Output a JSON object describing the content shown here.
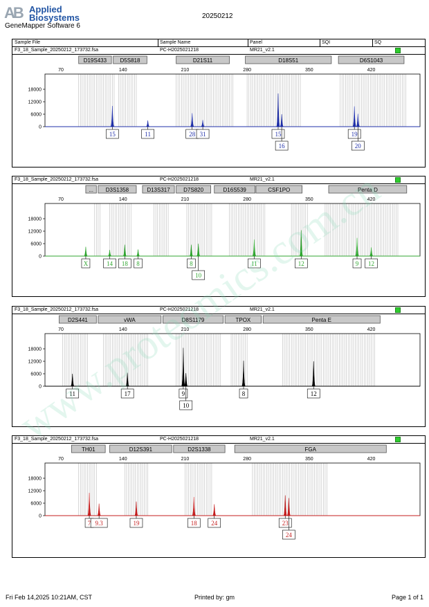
{
  "header": {
    "logo_mark": "AB",
    "company_line1": "Applied",
    "company_line2": "Biosystems",
    "software": "GeneMapper Software 6",
    "report_date": "20250212"
  },
  "columns": {
    "sample_file": "Sample File",
    "sample_name": "Sample Name",
    "panel": "Panel",
    "sqi": "SQI",
    "sq": "SQ"
  },
  "footer": {
    "printed_at": "Fri Feb 14,2025 10:21AM, CST",
    "printed_by": "Printed by: gm",
    "page": "Page 1 of 1"
  },
  "watermark": "www.proteomics.com.cn",
  "colors": {
    "blue": "#1f2fa8",
    "green": "#2fa62f",
    "black": "#000000",
    "red": "#c41e1e",
    "sq_ok": "#2ecc2e"
  },
  "chart_data": [
    {
      "type": "line",
      "sample_file": "F3_18_Sample_20250212_173732.fsa",
      "sample_name": "PC-H2025021218",
      "panel": "MR21_v2.1",
      "color": "#1f2fa8",
      "x_ticks": [
        70,
        140,
        210,
        280,
        350,
        420
      ],
      "y_ticks": [
        0,
        6000,
        12000,
        18000
      ],
      "xlim": [
        52,
        475
      ],
      "ylim": [
        0,
        22000
      ],
      "markers": [
        {
          "name": "D19S433",
          "start": 90,
          "end": 127
        },
        {
          "name": "D5S818",
          "start": 129,
          "end": 167
        },
        {
          "name": "D21S11",
          "start": 200,
          "end": 260
        },
        {
          "name": "D18S51",
          "start": 278,
          "end": 375
        },
        {
          "name": "D6S1043",
          "start": 383,
          "end": 457
        }
      ],
      "bins": [
        [
          90,
          131
        ],
        [
          135,
          156
        ],
        [
          200,
          264
        ],
        [
          280,
          340
        ],
        [
          385,
          460
        ]
      ],
      "peaks": [
        {
          "x": 128,
          "height": 10000,
          "label": "15",
          "row": 0
        },
        {
          "x": 168,
          "height": 3000,
          "label": "11",
          "row": 0
        },
        {
          "x": 218,
          "height": 6500,
          "label": "28",
          "row": 0
        },
        {
          "x": 230,
          "height": 3200,
          "label": "31",
          "row": 0
        },
        {
          "x": 315,
          "height": 16000,
          "label": "15",
          "row": 0
        },
        {
          "x": 319,
          "height": 6000,
          "label": "16",
          "row": 1
        },
        {
          "x": 401,
          "height": 9800,
          "label": "19",
          "row": 0
        },
        {
          "x": 405,
          "height": 6200,
          "label": "20",
          "row": 1
        }
      ]
    },
    {
      "type": "line",
      "sample_file": "F3_18_Sample_20250212_173732.fsa",
      "sample_name": "PC-H2025021218",
      "panel": "MR21_v2.1",
      "color": "#2fa62f",
      "x_ticks": [
        70,
        140,
        210,
        280,
        350,
        420
      ],
      "y_ticks": [
        0,
        6000,
        12000,
        18000
      ],
      "xlim": [
        52,
        475
      ],
      "ylim": [
        0,
        22000
      ],
      "markers": [
        {
          "name": "...",
          "start": 98,
          "end": 110
        },
        {
          "name": "D3S1358",
          "start": 112,
          "end": 155
        },
        {
          "name": "D13S317",
          "start": 162,
          "end": 198
        },
        {
          "name": "D7S820",
          "start": 200,
          "end": 239
        },
        {
          "name": "D16S539",
          "start": 243,
          "end": 289
        },
        {
          "name": "CSF1PO",
          "start": 290,
          "end": 342
        },
        {
          "name": "Penta D",
          "start": 372,
          "end": 460
        }
      ],
      "bins": [
        [
          108,
          114
        ],
        [
          125,
          150
        ],
        [
          175,
          192
        ],
        [
          212,
          240
        ],
        [
          260,
          300
        ],
        [
          330,
          348
        ],
        [
          368,
          450
        ]
      ],
      "peaks": [
        {
          "x": 98,
          "height": 4500,
          "label": "X",
          "row": 0
        },
        {
          "x": 125,
          "height": 3000,
          "label": "14",
          "row": 0
        },
        {
          "x": 142,
          "height": 5500,
          "label": "18",
          "row": 0
        },
        {
          "x": 157,
          "height": 3200,
          "label": "8",
          "row": 0
        },
        {
          "x": 217,
          "height": 5500,
          "label": "8",
          "row": 0
        },
        {
          "x": 225,
          "height": 6000,
          "label": "10",
          "row": 1
        },
        {
          "x": 288,
          "height": 8000,
          "label": "11",
          "row": 0
        },
        {
          "x": 341,
          "height": 12500,
          "label": "12",
          "row": 0
        },
        {
          "x": 404,
          "height": 8800,
          "label": "9",
          "row": 0
        },
        {
          "x": 420,
          "height": 4200,
          "label": "12",
          "row": 0
        }
      ]
    },
    {
      "type": "line",
      "sample_file": "F3_18_Sample_20250212_173732.fsa",
      "sample_name": "PC-H2025021218",
      "panel": "MR21_v2.1",
      "color": "#000000",
      "x_ticks": [
        70,
        140,
        210,
        280,
        350,
        420
      ],
      "y_ticks": [
        0,
        6000,
        12000,
        18000
      ],
      "xlim": [
        52,
        475
      ],
      "ylim": [
        0,
        22000
      ],
      "markers": [
        {
          "name": "D2S441",
          "start": 68,
          "end": 110
        },
        {
          "name": "vWA",
          "start": 112,
          "end": 183
        },
        {
          "name": "D8S1179",
          "start": 185,
          "end": 253
        },
        {
          "name": "TPOX",
          "start": 255,
          "end": 296
        },
        {
          "name": "Penta E",
          "start": 298,
          "end": 430
        }
      ],
      "bins": [
        [
          72,
          100
        ],
        [
          118,
          168
        ],
        [
          200,
          250
        ],
        [
          262,
          280
        ],
        [
          320,
          424
        ]
      ],
      "peaks": [
        {
          "x": 83,
          "height": 6000,
          "label": "11",
          "row": 0
        },
        {
          "x": 145,
          "height": 6500,
          "label": "17",
          "row": 0
        },
        {
          "x": 208,
          "height": 18500,
          "label": "9",
          "row": 0
        },
        {
          "x": 211,
          "height": 6300,
          "label": "10",
          "row": 1
        },
        {
          "x": 276,
          "height": 12300,
          "label": "8",
          "row": 0
        },
        {
          "x": 355,
          "height": 12000,
          "label": "12",
          "row": 0
        }
      ]
    },
    {
      "type": "line",
      "sample_file": "F3_18_Sample_20250212_173732.fsa",
      "sample_name": "PC-H2025021218",
      "panel": "MR21_v2.1",
      "color": "#c41e1e",
      "x_ticks": [
        70,
        140,
        210,
        280,
        350,
        420
      ],
      "y_ticks": [
        0,
        6000,
        12000,
        18000
      ],
      "xlim": [
        52,
        475
      ],
      "ylim": [
        0,
        22000
      ],
      "markers": [
        {
          "name": "TH01",
          "start": 82,
          "end": 120
        },
        {
          "name": "D12S391",
          "start": 125,
          "end": 195
        },
        {
          "name": "D2S1338",
          "start": 197,
          "end": 255
        },
        {
          "name": "FGA",
          "start": 266,
          "end": 437
        }
      ],
      "bins": [
        [
          90,
          110
        ],
        [
          142,
          168
        ],
        [
          210,
          240
        ],
        [
          286,
          370
        ]
      ],
      "peaks": [
        {
          "x": 102,
          "height": 11000,
          "label": "7",
          "row": 0
        },
        {
          "x": 113,
          "height": 5800,
          "label": "9.3",
          "row": 0
        },
        {
          "x": 155,
          "height": 6800,
          "label": "19",
          "row": 0
        },
        {
          "x": 220,
          "height": 9000,
          "label": "18",
          "row": 0
        },
        {
          "x": 243,
          "height": 5500,
          "label": "24",
          "row": 0
        },
        {
          "x": 323,
          "height": 9800,
          "label": "23",
          "row": 0
        },
        {
          "x": 327,
          "height": 8500,
          "label": "24",
          "row": 1
        }
      ]
    }
  ]
}
